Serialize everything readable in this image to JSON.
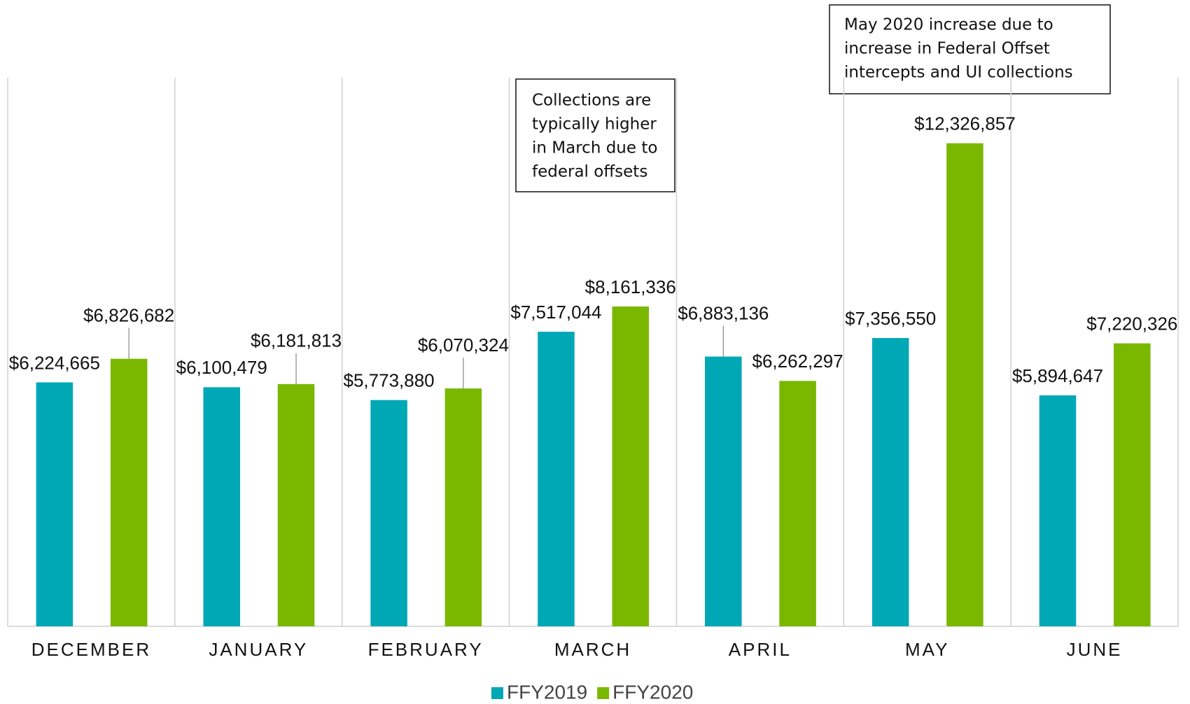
{
  "chart_data": {
    "type": "bar",
    "categories": [
      "DECEMBER",
      "JANUARY",
      "FEBRUARY",
      "MARCH",
      "APRIL",
      "MAY",
      "JUNE"
    ],
    "series": [
      {
        "name": "FFY2019",
        "color": "#00a8b5",
        "values": [
          6224665,
          6100479,
          5773880,
          7517044,
          6883136,
          7356550,
          5894647
        ],
        "value_labels": [
          "$6,224,665",
          "$6,100,479",
          "$5,773,880",
          "$7,517,044",
          "$6,883,136",
          "$7,356,550",
          "$5,894,647"
        ]
      },
      {
        "name": "FFY2020",
        "color": "#7ab800",
        "values": [
          6826682,
          6181813,
          6070324,
          8161336,
          6262297,
          12326857,
          7220326
        ],
        "value_labels": [
          "$6,826,682",
          "$6,181,813",
          "$6,070,324",
          "$8,161,336",
          "$6,262,297",
          "$12,326,857",
          "$7,220,326"
        ]
      }
    ],
    "ylim": [
      0,
      14000000
    ],
    "legend": "bottom",
    "annotations": [
      {
        "lines": [
          "Collections are",
          "typically higher",
          "in March due to",
          "federal offsets"
        ]
      },
      {
        "lines": [
          "May 2020 increase due to",
          "increase in Federal Offset",
          "intercepts and UI collections"
        ]
      }
    ]
  }
}
